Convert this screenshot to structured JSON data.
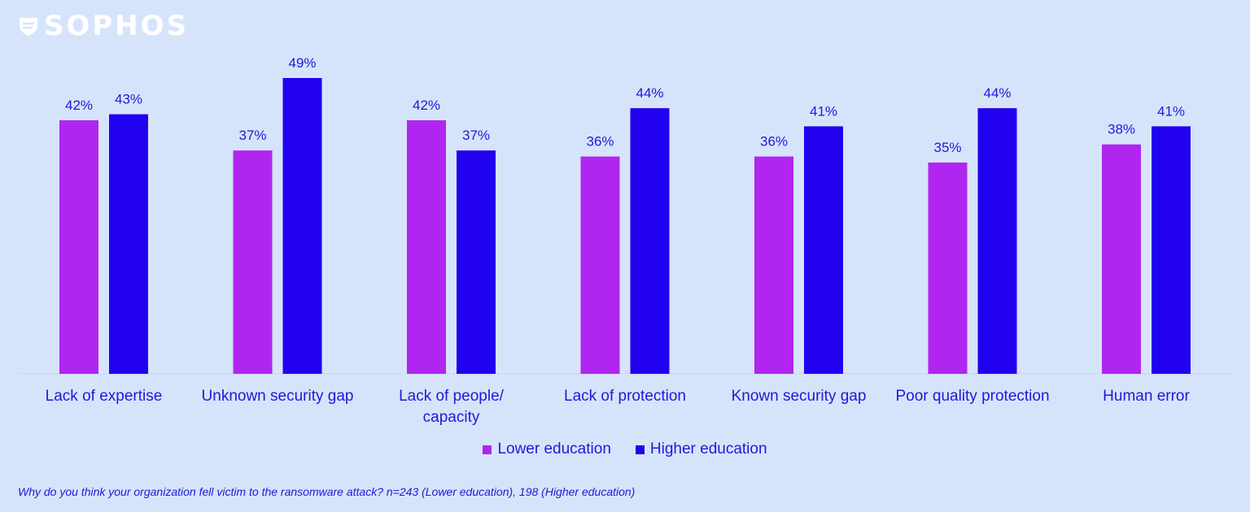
{
  "brand": {
    "name": "SOPHOS",
    "logo_icon": "shield-icon"
  },
  "chart_data": {
    "type": "bar",
    "categories": [
      [
        "Lack of expertise"
      ],
      [
        "Unknown security gap"
      ],
      [
        "Lack of people/",
        "capacity"
      ],
      [
        "Lack of protection"
      ],
      [
        "Known security gap"
      ],
      [
        "Poor quality protection"
      ],
      [
        "Human error"
      ]
    ],
    "series": [
      {
        "name": "Lower education",
        "color": "#b026f0",
        "values": [
          42,
          37,
          42,
          36,
          36,
          35,
          38
        ]
      },
      {
        "name": "Higher education",
        "color": "#2200f0",
        "values": [
          43,
          49,
          37,
          44,
          41,
          44,
          41
        ]
      }
    ],
    "value_suffix": "%",
    "ylim": [
      0,
      55
    ],
    "grid": false,
    "legend_position": "bottom-center",
    "title": "",
    "xlabel": "",
    "ylabel": ""
  },
  "legend": {
    "lower_label": "Lower education",
    "higher_label": "Higher education",
    "lower_color": "#b026f0",
    "higher_color": "#2200f0"
  },
  "footnote": "Why do you think your organization fell victim to the ransomware attack? n=243 (Lower education), 198 (Higher education)"
}
